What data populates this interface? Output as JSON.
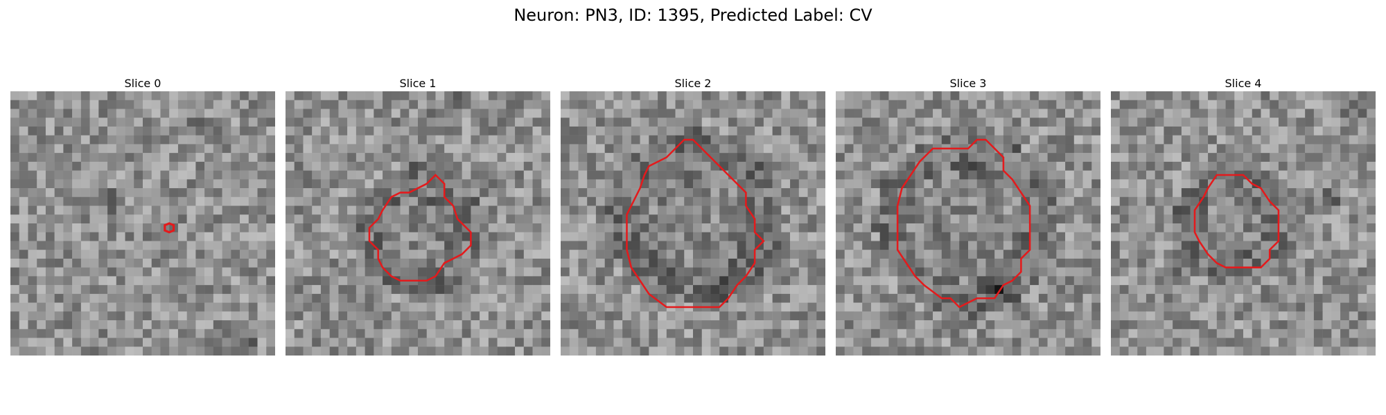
{
  "figure": {
    "title": "Neuron: PN3, ID: 1395, Predicted Label: CV",
    "contour_color": "#e41a1c",
    "colormap": "gray"
  },
  "panels": [
    {
      "title": "Slice 0",
      "contour": [
        [
          18,
          15
        ],
        [
          18.5,
          15.2
        ],
        [
          18.5,
          15.8
        ],
        [
          18,
          16
        ],
        [
          17.5,
          15.8
        ],
        [
          17.5,
          15.2
        ]
      ],
      "dark_spots": [
        [
          11,
          12
        ],
        [
          26,
          28
        ],
        [
          20,
          3
        ]
      ]
    },
    {
      "title": "Slice 1",
      "contour": [
        [
          17,
          9.5
        ],
        [
          18,
          10.5
        ],
        [
          18,
          12
        ],
        [
          19,
          13
        ],
        [
          19.5,
          14.5
        ],
        [
          21,
          16
        ],
        [
          21,
          17.5
        ],
        [
          20,
          18.5
        ],
        [
          19,
          19
        ],
        [
          18,
          19.5
        ],
        [
          17,
          21
        ],
        [
          16,
          21.5
        ],
        [
          13,
          21.5
        ],
        [
          12,
          21
        ],
        [
          11,
          20
        ],
        [
          10.5,
          19
        ],
        [
          10.5,
          18
        ],
        [
          9.5,
          17
        ],
        [
          9.5,
          15.5
        ],
        [
          10.5,
          14.5
        ],
        [
          11,
          13.5
        ],
        [
          12,
          12
        ],
        [
          13,
          11.5
        ],
        [
          14,
          11.5
        ],
        [
          15,
          11
        ],
        [
          16,
          10.5
        ]
      ],
      "dark_spots": [
        [
          19,
          1
        ],
        [
          17,
          2
        ],
        [
          18,
          22
        ]
      ]
    },
    {
      "title": "Slice 2",
      "contour": [
        [
          15,
          5.5
        ],
        [
          16,
          6.5
        ],
        [
          17,
          7.5
        ],
        [
          18,
          8.5
        ],
        [
          19,
          9.5
        ],
        [
          20,
          10.5
        ],
        [
          21,
          11.5
        ],
        [
          21,
          13
        ],
        [
          22,
          14.5
        ],
        [
          22,
          16
        ],
        [
          23,
          17
        ],
        [
          22,
          18
        ],
        [
          22,
          19.5
        ],
        [
          21,
          21
        ],
        [
          20,
          22
        ],
        [
          19,
          23.5
        ],
        [
          18,
          24.5
        ],
        [
          12,
          24.5
        ],
        [
          10,
          23
        ],
        [
          9,
          21.5
        ],
        [
          8,
          20
        ],
        [
          7.5,
          18
        ],
        [
          7.5,
          14
        ],
        [
          8,
          13
        ],
        [
          9,
          11
        ],
        [
          9.5,
          9.5
        ],
        [
          10,
          8.5
        ],
        [
          11,
          8
        ],
        [
          12,
          7.5
        ],
        [
          13,
          6.5
        ],
        [
          14,
          5.5
        ]
      ],
      "dark_spots": [
        [
          10,
          19
        ],
        [
          18,
          22
        ],
        [
          15,
          10
        ]
      ]
    },
    {
      "title": "Slice 3",
      "contour": [
        [
          16,
          5.5
        ],
        [
          17,
          5.5
        ],
        [
          18,
          6.5
        ],
        [
          19,
          7.5
        ],
        [
          19,
          9
        ],
        [
          20,
          10
        ],
        [
          21,
          11.5
        ],
        [
          22,
          13
        ],
        [
          22,
          18
        ],
        [
          21,
          19
        ],
        [
          21,
          20.5
        ],
        [
          20,
          21.5
        ],
        [
          19,
          22
        ],
        [
          18,
          23.5
        ],
        [
          16,
          23.5
        ],
        [
          15,
          24
        ],
        [
          14,
          24.5
        ],
        [
          13,
          23.5
        ],
        [
          12,
          23.5
        ],
        [
          10,
          22
        ],
        [
          9,
          21
        ],
        [
          8,
          19.5
        ],
        [
          7,
          18
        ],
        [
          7,
          13
        ],
        [
          7.5,
          11
        ],
        [
          8.5,
          9.5
        ],
        [
          9.5,
          8
        ],
        [
          10.5,
          7
        ],
        [
          11,
          6.5
        ],
        [
          15,
          6.5
        ]
      ],
      "dark_spots": [
        [
          7,
          9
        ],
        [
          15,
          9
        ],
        [
          18,
          22
        ]
      ]
    },
    {
      "title": "Slice 4",
      "contour": [
        [
          12,
          9.5
        ],
        [
          15,
          9.5
        ],
        [
          16,
          10.5
        ],
        [
          17,
          11
        ],
        [
          18,
          12.5
        ],
        [
          19,
          13.5
        ],
        [
          19,
          17
        ],
        [
          18,
          18
        ],
        [
          18,
          19
        ],
        [
          17,
          20
        ],
        [
          13,
          20
        ],
        [
          12,
          19.5
        ],
        [
          11,
          18.5
        ],
        [
          10,
          17
        ],
        [
          9.5,
          16
        ],
        [
          9.5,
          13.5
        ],
        [
          10.5,
          12
        ],
        [
          11,
          11
        ]
      ],
      "dark_spots": [
        [
          7,
          20
        ],
        [
          24,
          12
        ],
        [
          27,
          2
        ]
      ]
    }
  ]
}
